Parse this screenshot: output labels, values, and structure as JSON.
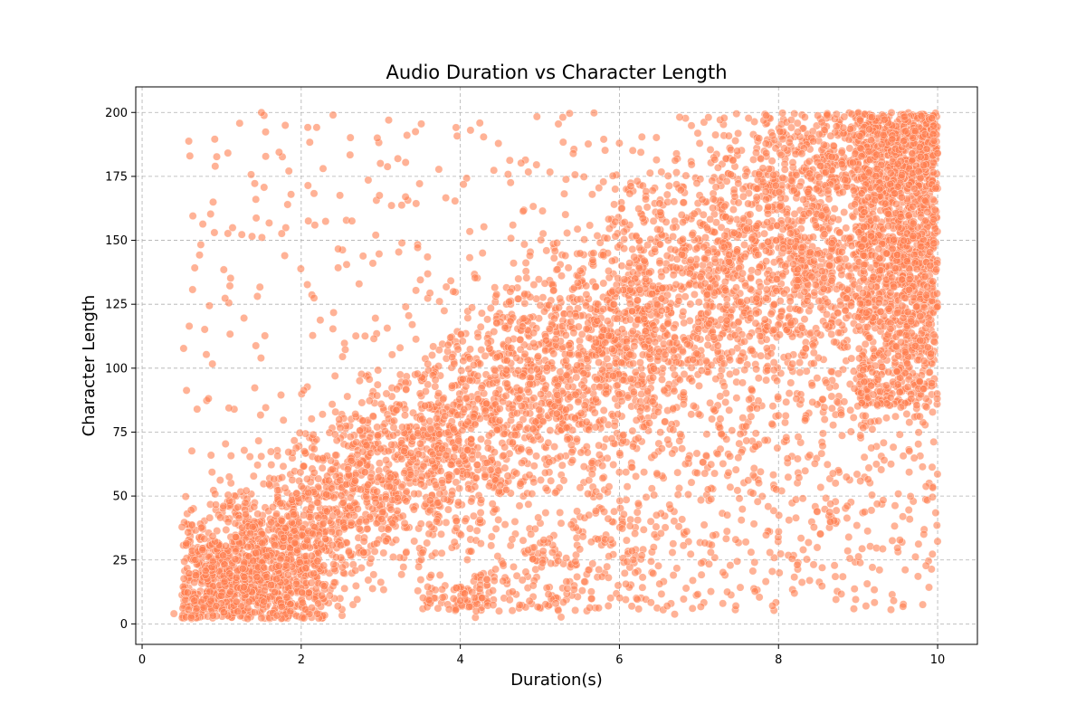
{
  "chart_data": {
    "type": "scatter",
    "title": "Audio Duration vs Character Length",
    "xlabel": "Duration(s)",
    "ylabel": "Character Length",
    "xlim": [
      -0.08,
      10.5
    ],
    "ylim": [
      -8,
      210
    ],
    "xticks": [
      0,
      2,
      4,
      6,
      8,
      10
    ],
    "yticks": [
      0,
      25,
      50,
      75,
      100,
      125,
      150,
      175,
      200
    ],
    "grid": true,
    "grid_style": "dashed",
    "legend": "none",
    "marker_color": "#FF7F50",
    "marker_alpha": 0.6,
    "marker_edge_color": "#ffffff",
    "points_description": "dense cloud of tens of thousands of points; main trend approx. 17-20 characters per second, bounded above at 200 and on the right at 10 s; sparse outliers above and below the main band",
    "sample_points": [
      {
        "x": 0.4,
        "y": 4
      },
      {
        "x": 0.6,
        "y": 183
      },
      {
        "x": 1.5,
        "y": 200
      },
      {
        "x": 2.4,
        "y": 199
      },
      {
        "x": 3.1,
        "y": 197
      },
      {
        "x": 4.2,
        "y": 5
      },
      {
        "x": 5.2,
        "y": 8
      },
      {
        "x": 6.0,
        "y": 188
      },
      {
        "x": 6.6,
        "y": 7
      },
      {
        "x": 7.3,
        "y": 8
      },
      {
        "x": 8.2,
        "y": 12
      },
      {
        "x": 9.1,
        "y": 7
      },
      {
        "x": 10.0,
        "y": 184
      }
    ]
  }
}
